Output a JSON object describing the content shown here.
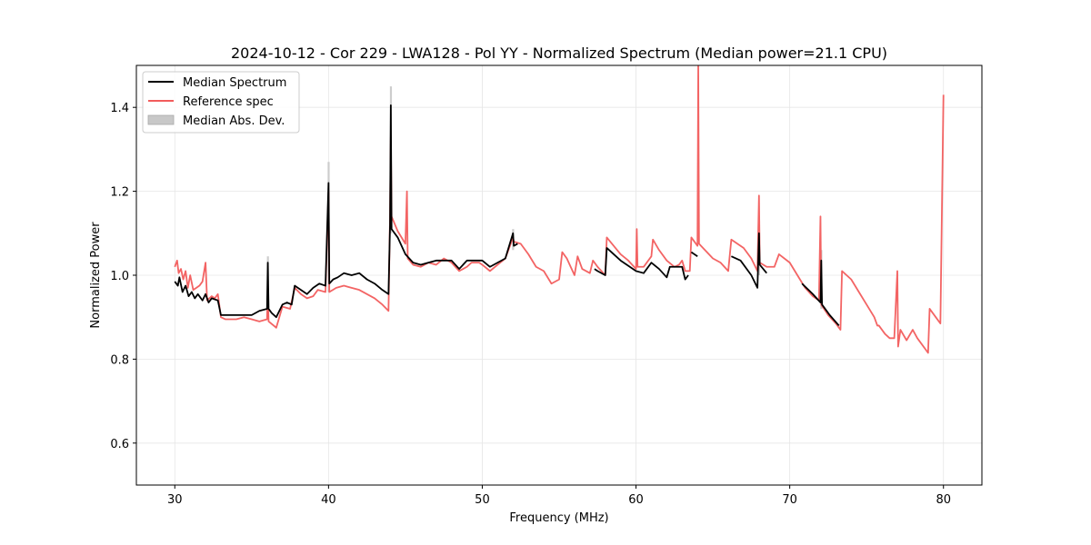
{
  "chart_data": {
    "type": "line",
    "title": "2024-10-12 - Cor 229 - LWA128 - Pol YY - Normalized Spectrum (Median power=21.1 CPU)",
    "xlabel": "Frequency (MHz)",
    "ylabel": "Normalized Power",
    "xlim": [
      27.5,
      82.5
    ],
    "ylim": [
      0.5,
      1.5
    ],
    "xticks": [
      30,
      40,
      50,
      60,
      70,
      80
    ],
    "yticks": [
      0.6,
      0.8,
      1.0,
      1.2,
      1.4
    ],
    "xtick_labels": [
      "30",
      "40",
      "50",
      "60",
      "70",
      "80"
    ],
    "ytick_labels": [
      "0.6",
      "0.8",
      "1.0",
      "1.2",
      "1.4"
    ],
    "grid": true,
    "legend_location": "top-left",
    "legend": [
      {
        "label": "Median Spectrum",
        "color": "#000000",
        "kind": "line"
      },
      {
        "label": "Reference spec",
        "color": "#f25c5c",
        "kind": "line"
      },
      {
        "label": "Median Abs. Dev.",
        "color": "#c8c8c8",
        "kind": "patch"
      }
    ],
    "series": [
      {
        "name": "Median Spectrum",
        "color": "#000000",
        "segments": [
          [
            [
              30.0,
              0.985
            ],
            [
              30.2,
              0.975
            ],
            [
              30.3,
              0.995
            ],
            [
              30.5,
              0.96
            ],
            [
              30.7,
              0.975
            ],
            [
              30.9,
              0.95
            ],
            [
              31.1,
              0.96
            ],
            [
              31.3,
              0.945
            ],
            [
              31.5,
              0.955
            ],
            [
              31.8,
              0.94
            ],
            [
              32.0,
              0.955
            ],
            [
              32.2,
              0.935
            ],
            [
              32.4,
              0.945
            ],
            [
              32.8,
              0.94
            ],
            [
              33.0,
              0.905
            ],
            [
              33.5,
              0.905
            ],
            [
              34.0,
              0.905
            ],
            [
              34.5,
              0.905
            ],
            [
              35.0,
              0.905
            ],
            [
              35.5,
              0.915
            ],
            [
              36.0,
              0.92
            ],
            [
              36.05,
              1.03
            ],
            [
              36.1,
              0.92
            ],
            [
              36.3,
              0.91
            ],
            [
              36.6,
              0.9
            ],
            [
              37.0,
              0.93
            ],
            [
              37.3,
              0.935
            ],
            [
              37.6,
              0.93
            ],
            [
              37.8,
              0.975
            ],
            [
              38.2,
              0.965
            ],
            [
              38.6,
              0.955
            ],
            [
              39.0,
              0.97
            ],
            [
              39.4,
              0.98
            ],
            [
              39.8,
              0.975
            ],
            [
              40.0,
              1.22
            ],
            [
              40.05,
              0.98
            ],
            [
              40.3,
              0.99
            ],
            [
              40.6,
              0.995
            ],
            [
              41.0,
              1.005
            ],
            [
              41.5,
              1.0
            ],
            [
              42.0,
              1.005
            ],
            [
              42.5,
              0.99
            ],
            [
              43.0,
              0.98
            ],
            [
              43.5,
              0.965
            ],
            [
              43.9,
              0.955
            ],
            [
              44.0,
              1.12
            ],
            [
              44.05,
              1.405
            ],
            [
              44.1,
              1.11
            ],
            [
              44.5,
              1.09
            ],
            [
              45.0,
              1.05
            ],
            [
              45.5,
              1.03
            ],
            [
              46.0,
              1.025
            ],
            [
              46.5,
              1.03
            ],
            [
              47.0,
              1.035
            ],
            [
              47.5,
              1.035
            ],
            [
              48.0,
              1.035
            ],
            [
              48.5,
              1.015
            ],
            [
              49.0,
              1.035
            ],
            [
              49.5,
              1.035
            ],
            [
              50.0,
              1.035
            ],
            [
              50.5,
              1.02
            ],
            [
              51.0,
              1.03
            ],
            [
              51.5,
              1.04
            ],
            [
              52.0,
              1.1
            ],
            [
              52.05,
              1.07
            ],
            [
              52.3,
              1.075
            ]
          ],
          [
            [
              57.3,
              1.015
            ],
            [
              57.5,
              1.01
            ],
            [
              58.0,
              1.0
            ],
            [
              58.1,
              1.065
            ],
            [
              59.0,
              1.035
            ],
            [
              60.0,
              1.01
            ],
            [
              60.5,
              1.005
            ],
            [
              61.0,
              1.03
            ],
            [
              61.5,
              1.015
            ],
            [
              62.0,
              0.995
            ],
            [
              62.2,
              1.02
            ],
            [
              62.5,
              1.02
            ],
            [
              63.0,
              1.02
            ],
            [
              63.2,
              0.99
            ],
            [
              63.4,
              1.0
            ]
          ],
          [
            [
              63.6,
              1.055
            ],
            [
              64.0,
              1.045
            ]
          ],
          [
            [
              66.2,
              1.045
            ],
            [
              66.8,
              1.035
            ],
            [
              67.5,
              1.0
            ],
            [
              67.9,
              0.97
            ],
            [
              68.0,
              1.1
            ],
            [
              68.05,
              1.025
            ],
            [
              68.5,
              1.005
            ]
          ],
          [
            [
              70.8,
              0.98
            ],
            [
              71.5,
              0.955
            ],
            [
              72.0,
              0.935
            ],
            [
              72.05,
              1.035
            ],
            [
              72.1,
              0.93
            ],
            [
              72.6,
              0.905
            ],
            [
              73.2,
              0.88
            ]
          ]
        ]
      },
      {
        "name": "Reference spec",
        "color": "#f25c5c",
        "segments": [
          [
            [
              30.0,
              1.02
            ],
            [
              30.15,
              1.035
            ],
            [
              30.25,
              1.005
            ],
            [
              30.4,
              1.015
            ],
            [
              30.55,
              0.99
            ],
            [
              30.7,
              1.01
            ],
            [
              30.85,
              0.97
            ],
            [
              31.0,
              1.0
            ],
            [
              31.2,
              0.965
            ],
            [
              31.4,
              0.97
            ],
            [
              31.6,
              0.975
            ],
            [
              31.8,
              0.985
            ],
            [
              32.0,
              1.03
            ],
            [
              32.1,
              0.94
            ],
            [
              32.4,
              0.95
            ],
            [
              32.6,
              0.945
            ],
            [
              32.8,
              0.955
            ],
            [
              33.0,
              0.9
            ],
            [
              33.3,
              0.895
            ],
            [
              33.6,
              0.895
            ],
            [
              34.0,
              0.895
            ],
            [
              34.5,
              0.9
            ],
            [
              35.0,
              0.895
            ],
            [
              35.5,
              0.89
            ],
            [
              36.0,
              0.895
            ],
            [
              36.05,
              0.965
            ],
            [
              36.1,
              0.89
            ],
            [
              36.6,
              0.875
            ],
            [
              37.0,
              0.925
            ],
            [
              37.5,
              0.92
            ],
            [
              37.8,
              0.97
            ],
            [
              38.2,
              0.955
            ],
            [
              38.6,
              0.945
            ],
            [
              39.0,
              0.95
            ],
            [
              39.3,
              0.965
            ],
            [
              39.8,
              0.96
            ],
            [
              40.0,
              1.2
            ],
            [
              40.05,
              0.96
            ],
            [
              40.5,
              0.97
            ],
            [
              41.0,
              0.975
            ],
            [
              41.5,
              0.97
            ],
            [
              42.0,
              0.965
            ],
            [
              42.5,
              0.955
            ],
            [
              43.0,
              0.945
            ],
            [
              43.5,
              0.93
            ],
            [
              43.9,
              0.915
            ],
            [
              44.0,
              1.14
            ],
            [
              44.05,
              1.33
            ],
            [
              44.1,
              1.14
            ],
            [
              44.5,
              1.105
            ],
            [
              45.0,
              1.075
            ],
            [
              45.1,
              1.2
            ],
            [
              45.15,
              1.04
            ],
            [
              45.5,
              1.025
            ],
            [
              46.0,
              1.02
            ],
            [
              46.5,
              1.03
            ],
            [
              47.0,
              1.025
            ],
            [
              47.5,
              1.04
            ],
            [
              48.0,
              1.03
            ],
            [
              48.5,
              1.01
            ],
            [
              49.0,
              1.02
            ],
            [
              49.3,
              1.03
            ],
            [
              49.8,
              1.03
            ],
            [
              50.0,
              1.025
            ],
            [
              50.5,
              1.01
            ],
            [
              51.0,
              1.025
            ],
            [
              51.5,
              1.04
            ],
            [
              52.0,
              1.09
            ],
            [
              52.05,
              1.08
            ],
            [
              52.5,
              1.075
            ],
            [
              53.0,
              1.05
            ],
            [
              53.5,
              1.02
            ],
            [
              54.0,
              1.01
            ],
            [
              54.5,
              0.98
            ],
            [
              55.0,
              0.99
            ],
            [
              55.2,
              1.055
            ],
            [
              55.5,
              1.04
            ],
            [
              56.0,
              1.0
            ],
            [
              56.2,
              1.045
            ],
            [
              56.5,
              1.015
            ],
            [
              57.0,
              1.005
            ],
            [
              57.2,
              1.035
            ],
            [
              57.5,
              1.02
            ],
            [
              58.0,
              1.0
            ],
            [
              58.1,
              1.09
            ],
            [
              59.0,
              1.05
            ],
            [
              59.5,
              1.035
            ],
            [
              60.0,
              1.015
            ],
            [
              60.05,
              1.11
            ],
            [
              60.1,
              1.02
            ],
            [
              60.5,
              1.02
            ],
            [
              61.0,
              1.045
            ],
            [
              61.1,
              1.085
            ],
            [
              61.5,
              1.06
            ],
            [
              62.0,
              1.035
            ],
            [
              62.5,
              1.02
            ],
            [
              62.8,
              1.025
            ],
            [
              63.0,
              1.035
            ],
            [
              63.2,
              1.01
            ],
            [
              63.5,
              1.01
            ],
            [
              63.6,
              1.09
            ],
            [
              64.0,
              1.07
            ],
            [
              64.05,
              1.5
            ],
            [
              64.1,
              1.075
            ],
            [
              65.0,
              1.04
            ],
            [
              65.5,
              1.03
            ],
            [
              66.0,
              1.01
            ],
            [
              66.2,
              1.085
            ],
            [
              67.0,
              1.065
            ],
            [
              67.5,
              1.04
            ],
            [
              67.9,
              1.01
            ],
            [
              68.0,
              1.19
            ],
            [
              68.05,
              1.03
            ],
            [
              68.5,
              1.02
            ],
            [
              69.0,
              1.02
            ],
            [
              69.3,
              1.05
            ],
            [
              70.0,
              1.03
            ],
            [
              70.5,
              1.0
            ],
            [
              71.0,
              0.97
            ],
            [
              71.5,
              0.95
            ],
            [
              71.9,
              0.94
            ],
            [
              72.0,
              1.14
            ],
            [
              72.05,
              0.93
            ],
            [
              72.5,
              0.905
            ],
            [
              73.0,
              0.885
            ],
            [
              73.3,
              0.87
            ],
            [
              73.4,
              1.01
            ],
            [
              74.0,
              0.99
            ],
            [
              74.5,
              0.96
            ],
            [
              75.0,
              0.93
            ],
            [
              75.5,
              0.9
            ],
            [
              75.7,
              0.88
            ],
            [
              75.8,
              0.88
            ],
            [
              76.2,
              0.86
            ],
            [
              76.5,
              0.85
            ],
            [
              76.8,
              0.85
            ],
            [
              77.0,
              1.01
            ],
            [
              77.05,
              0.83
            ],
            [
              77.2,
              0.87
            ],
            [
              77.6,
              0.845
            ],
            [
              78.0,
              0.87
            ],
            [
              78.3,
              0.85
            ],
            [
              78.7,
              0.83
            ],
            [
              79.0,
              0.815
            ],
            [
              79.1,
              0.92
            ],
            [
              79.5,
              0.9
            ],
            [
              79.8,
              0.885
            ],
            [
              80.0,
              1.43
            ]
          ]
        ]
      }
    ],
    "median_abs_dev_spikes": [
      {
        "x": 36.05,
        "low": 0.9,
        "high": 1.045
      },
      {
        "x": 40.0,
        "low": 0.96,
        "high": 1.27
      },
      {
        "x": 44.05,
        "low": 1.1,
        "high": 1.45
      },
      {
        "x": 52.0,
        "low": 1.06,
        "high": 1.11
      },
      {
        "x": 68.0,
        "low": 1.0,
        "high": 1.12
      },
      {
        "x": 72.05,
        "low": 0.92,
        "high": 1.06
      }
    ]
  }
}
